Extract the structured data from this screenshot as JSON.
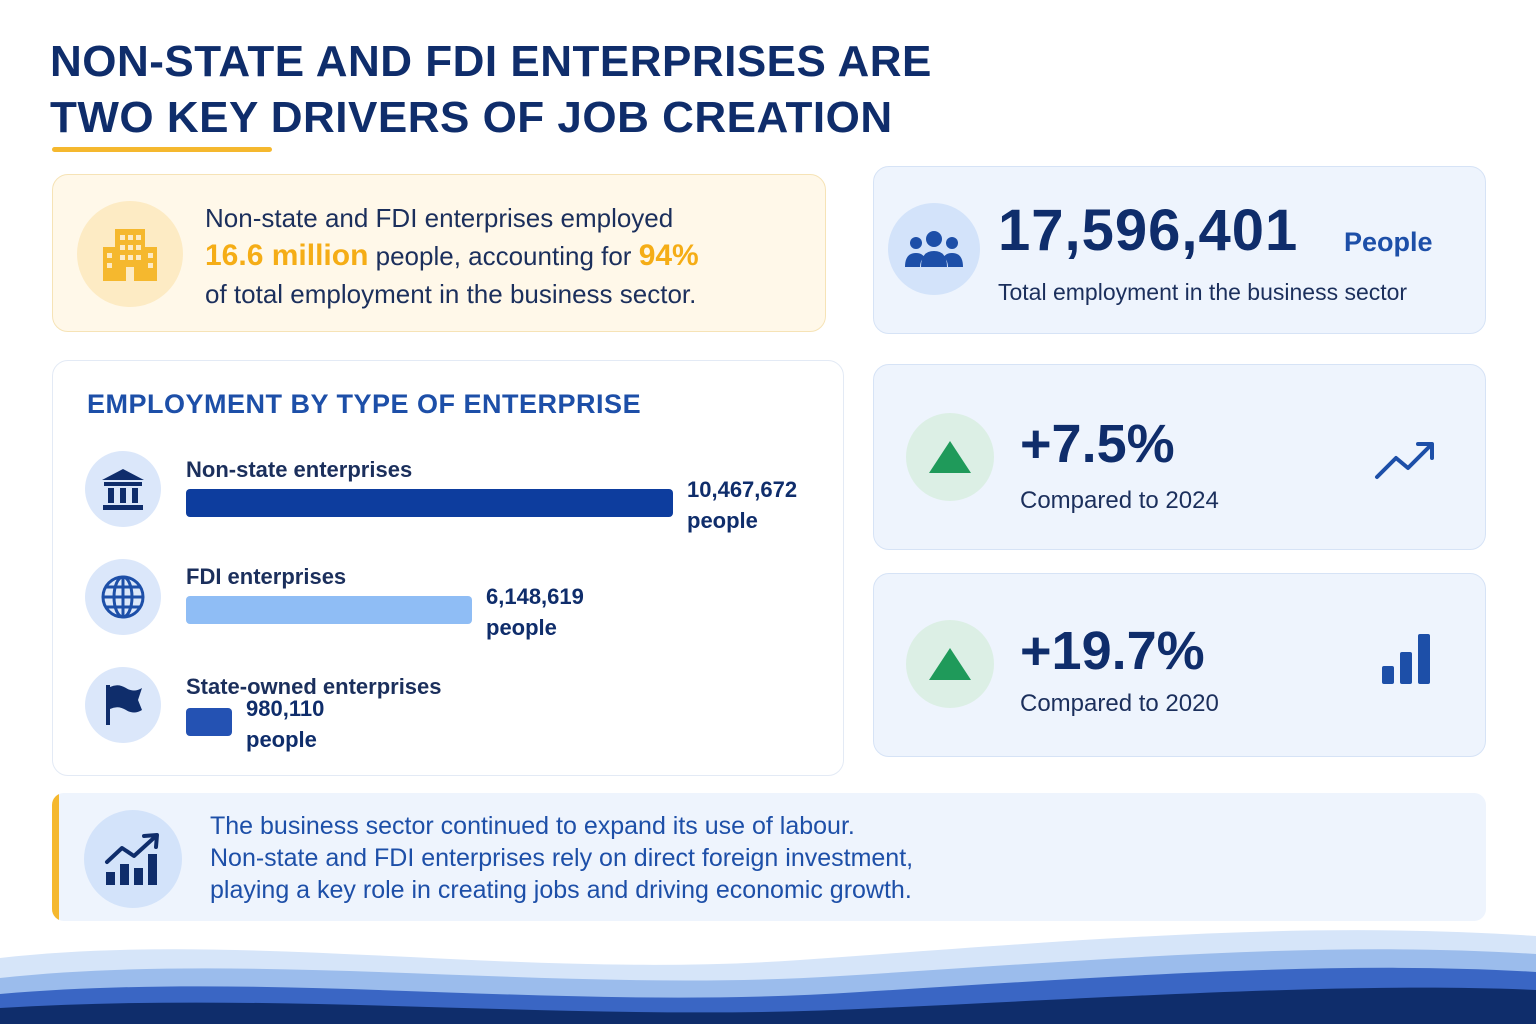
{
  "header": {
    "title_line1": "NON-STATE AND FDI ENTERPRISES ARE",
    "title_line2": "TWO KEY DRIVERS OF JOB CREATION"
  },
  "summary": {
    "icon": "building-icon",
    "text_part1": "Non-state and FDI enterprises employed",
    "highlight_value": "16.6 million",
    "text_part2": " people, accounting for ",
    "highlight_percent": "94%",
    "text_part3": "of total employment in the business sector."
  },
  "total": {
    "icon": "people-group-icon",
    "number": "17,596,401",
    "unit": "People",
    "caption": "Total employment in the business sector"
  },
  "chart_data": {
    "type": "bar",
    "orientation": "horizontal",
    "title": "EMPLOYMENT BY TYPE OF ENTERPRISE",
    "categories": [
      "Non-state enterprises",
      "FDI enterprises",
      "State-owned enterprises"
    ],
    "values": [
      10467672,
      6148619,
      980110
    ],
    "value_labels": [
      "10,467,672",
      "6,148,619",
      "980,110"
    ],
    "unit_label": "people",
    "icons": [
      "institution-icon",
      "globe-icon",
      "flag-icon"
    ],
    "colors": [
      "#0d3d9e",
      "#8fbdf5",
      "#2452b3"
    ]
  },
  "growth": [
    {
      "icon": "triangle-up-icon",
      "value": "+7.5%",
      "caption": "Compared to 2024",
      "side_icon": "trend-up-arrow-icon"
    },
    {
      "icon": "triangle-up-icon",
      "value": "+19.7%",
      "caption": "Compared to 2020",
      "side_icon": "bar-chart-icon"
    }
  ],
  "note": {
    "icon": "growth-chart-icon",
    "line1": "The business sector continued to expand its use of labour.",
    "line2": "Non-state and FDI enterprises rely on direct foreign investment,",
    "line3": "playing a key role in creating jobs and driving economic growth."
  },
  "colors": {
    "navy": "#0f2d6b",
    "blue": "#1d4fa8",
    "gold": "#f5b82e",
    "green": "#1f9a5a"
  }
}
